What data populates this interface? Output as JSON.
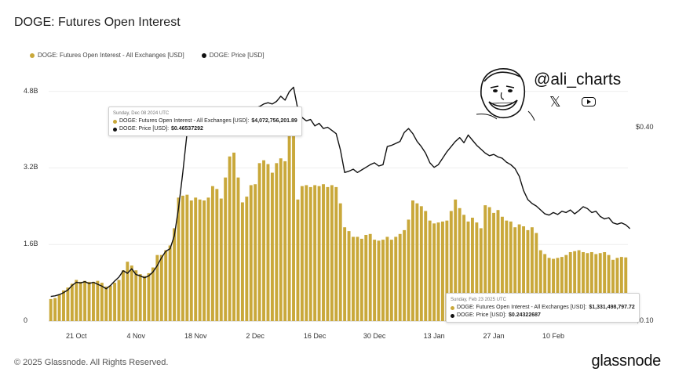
{
  "chart_data": {
    "type": "bar+line",
    "title": "DOGE: Futures Open Interest",
    "legend": [
      "DOGE: Futures Open Interest - All Exchanges [USD]",
      "DOGE: Price [USD]"
    ],
    "colors": {
      "bars": "#c9a83a",
      "line": "#111111"
    },
    "y_left": {
      "ticks": [
        0,
        1600000000,
        3200000000,
        4800000000
      ],
      "tick_labels": [
        "0",
        "1.6B",
        "3.2B",
        "4.8B"
      ],
      "range": [
        0,
        5400000000
      ]
    },
    "y_right": {
      "ticks": [
        0.1,
        0.4
      ],
      "tick_labels": [
        "$0.10",
        "$0.40"
      ],
      "range": [
        0.1,
        0.5
      ]
    },
    "x_ticks": [
      {
        "label": "21 Oct",
        "index": 6
      },
      {
        "label": "4 Nov",
        "index": 20
      },
      {
        "label": "18 Nov",
        "index": 34
      },
      {
        "label": "2 Dec",
        "index": 48
      },
      {
        "label": "16 Dec",
        "index": 62
      },
      {
        "label": "30 Dec",
        "index": 76
      },
      {
        "label": "13 Jan",
        "index": 90
      },
      {
        "label": "27 Jan",
        "index": 104
      },
      {
        "label": "10 Feb",
        "index": 118
      }
    ],
    "open_interest_billions": [
      0.46,
      0.48,
      0.56,
      0.64,
      0.7,
      0.78,
      0.86,
      0.82,
      0.84,
      0.82,
      0.82,
      0.84,
      0.8,
      0.72,
      0.74,
      0.8,
      0.86,
      1.06,
      1.24,
      1.16,
      1.06,
      0.98,
      0.94,
      1.0,
      1.12,
      1.38,
      1.38,
      1.48,
      1.58,
      1.94,
      2.58,
      2.62,
      2.64,
      2.52,
      2.58,
      2.54,
      2.52,
      2.58,
      2.82,
      2.76,
      2.56,
      3.0,
      3.44,
      3.52,
      3.0,
      2.48,
      2.6,
      2.84,
      2.86,
      3.3,
      3.36,
      3.28,
      3.1,
      3.3,
      3.4,
      3.34,
      3.96,
      4.06,
      2.54,
      2.82,
      2.84,
      2.8,
      2.84,
      2.82,
      2.86,
      2.8,
      2.84,
      2.8,
      2.46,
      1.96,
      1.88,
      1.76,
      1.76,
      1.72,
      1.8,
      1.82,
      1.7,
      1.68,
      1.7,
      1.76,
      1.7,
      1.76,
      1.82,
      1.9,
      2.12,
      2.52,
      2.46,
      2.4,
      2.3,
      2.1,
      2.04,
      2.06,
      2.08,
      2.1,
      2.3,
      2.54,
      2.36,
      2.22,
      2.08,
      2.16,
      2.06,
      1.94,
      2.42,
      2.38,
      2.26,
      2.32,
      2.18,
      2.1,
      2.08,
      1.96,
      2.02,
      1.98,
      1.9,
      1.96,
      1.84,
      1.48,
      1.4,
      1.32,
      1.3,
      1.32,
      1.34,
      1.38,
      1.44,
      1.46,
      1.48,
      1.44,
      1.42,
      1.44,
      1.4,
      1.42,
      1.44,
      1.38,
      1.28,
      1.32,
      1.34,
      1.33
    ],
    "price_usd": [
      0.138,
      0.139,
      0.141,
      0.144,
      0.148,
      0.155,
      0.16,
      0.159,
      0.161,
      0.158,
      0.16,
      0.157,
      0.154,
      0.15,
      0.155,
      0.162,
      0.168,
      0.178,
      0.174,
      0.181,
      0.172,
      0.17,
      0.167,
      0.17,
      0.176,
      0.186,
      0.198,
      0.208,
      0.212,
      0.232,
      0.275,
      0.33,
      0.392,
      0.41,
      0.39,
      0.4,
      0.392,
      0.395,
      0.398,
      0.4,
      0.402,
      0.408,
      0.415,
      0.418,
      0.422,
      0.42,
      0.424,
      0.428,
      0.43,
      0.432,
      0.436,
      0.438,
      0.436,
      0.44,
      0.448,
      0.442,
      0.455,
      0.462,
      0.428,
      0.415,
      0.41,
      0.412,
      0.402,
      0.406,
      0.398,
      0.4,
      0.395,
      0.39,
      0.365,
      0.33,
      0.332,
      0.335,
      0.33,
      0.334,
      0.338,
      0.342,
      0.345,
      0.34,
      0.342,
      0.37,
      0.372,
      0.375,
      0.378,
      0.392,
      0.398,
      0.39,
      0.378,
      0.37,
      0.36,
      0.345,
      0.338,
      0.342,
      0.352,
      0.362,
      0.37,
      0.378,
      0.384,
      0.376,
      0.388,
      0.38,
      0.372,
      0.366,
      0.36,
      0.356,
      0.358,
      0.354,
      0.352,
      0.346,
      0.342,
      0.336,
      0.324,
      0.302,
      0.288,
      0.282,
      0.278,
      0.272,
      0.266,
      0.264,
      0.268,
      0.265,
      0.27,
      0.268,
      0.272,
      0.266,
      0.271,
      0.277,
      0.274,
      0.268,
      0.27,
      0.262,
      0.258,
      0.26,
      0.252,
      0.25,
      0.252,
      0.249,
      0.243
    ]
  },
  "tooltip_top": {
    "date": "Sunday, Dec 08 2024 UTC",
    "oi_label": "DOGE: Futures Open Interest - All Exchanges [USD]:",
    "oi_value": "$4,072,756,201.89",
    "price_label": "DOGE: Price [USD]:",
    "price_value": "$0.46537292"
  },
  "tooltip_bottom": {
    "date": "Sunday, Feb 23 2025 UTC",
    "oi_label": "DOGE: Futures Open Interest - All Exchanges [USD]:",
    "oi_value": "$1,331,498,797.72",
    "price_label": "DOGE: Price [USD]:",
    "price_value": "$0.24322687"
  },
  "watermark": {
    "handle": "@ali_charts",
    "icons": [
      "x-logo-icon",
      "youtube-icon"
    ],
    "x_glyph": "𝕏"
  },
  "footer": {
    "copyright": "© 2025 Glassnode. All Rights Reserved.",
    "logo": "glassnode"
  }
}
